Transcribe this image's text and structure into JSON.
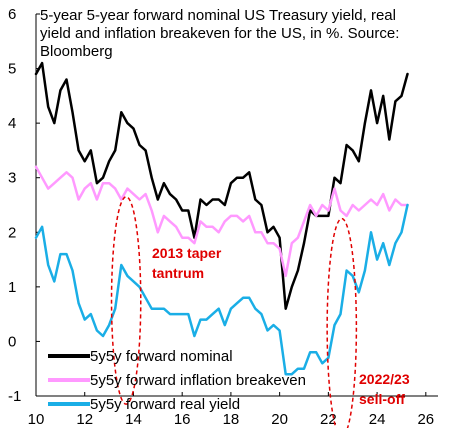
{
  "chart_data": {
    "type": "line",
    "title_lines": [
      "5-year 5-year forward nominal US Treasury yield, real",
      "yield and inflation breakeven for the US, in %. Source:",
      "Bloomberg"
    ],
    "xlabel": "",
    "ylabel": "",
    "xlim": [
      2010,
      2026.5
    ],
    "ylim": [
      -1,
      6
    ],
    "x_ticks": [
      10,
      12,
      14,
      16,
      18,
      20,
      22,
      24,
      26
    ],
    "y_ticks": [
      -1,
      0,
      1,
      2,
      3,
      4,
      5,
      6
    ],
    "grid": false,
    "legend_position": "bottom-left",
    "series": [
      {
        "name": "5y5y forward nominal",
        "color": "#000000",
        "x": [
          2010.0,
          2010.25,
          2010.5,
          2010.75,
          2011.0,
          2011.25,
          2011.5,
          2011.75,
          2012.0,
          2012.25,
          2012.5,
          2012.75,
          2013.0,
          2013.25,
          2013.5,
          2013.75,
          2014.0,
          2014.25,
          2014.5,
          2014.75,
          2015.0,
          2015.25,
          2015.5,
          2015.75,
          2016.0,
          2016.25,
          2016.5,
          2016.75,
          2017.0,
          2017.25,
          2017.5,
          2017.75,
          2018.0,
          2018.25,
          2018.5,
          2018.75,
          2019.0,
          2019.25,
          2019.5,
          2019.75,
          2020.0,
          2020.25,
          2020.5,
          2020.75,
          2021.0,
          2021.25,
          2021.5,
          2021.75,
          2022.0,
          2022.25,
          2022.5,
          2022.75,
          2023.0,
          2023.25,
          2023.5,
          2023.75,
          2024.0,
          2024.25,
          2024.5,
          2024.75,
          2025.0,
          2025.25
        ],
        "y": [
          4.9,
          5.1,
          4.3,
          4.0,
          4.6,
          4.8,
          4.2,
          3.5,
          3.3,
          3.5,
          2.9,
          3.0,
          3.3,
          3.5,
          4.2,
          4.0,
          3.9,
          3.6,
          3.5,
          3.0,
          2.6,
          2.9,
          2.7,
          2.6,
          2.4,
          2.4,
          1.9,
          2.6,
          2.5,
          2.6,
          2.6,
          2.5,
          2.9,
          3.0,
          3.0,
          3.1,
          2.6,
          2.5,
          2.0,
          2.1,
          1.9,
          0.6,
          1.0,
          1.3,
          1.8,
          2.4,
          2.3,
          2.3,
          2.3,
          3.0,
          2.9,
          3.6,
          3.5,
          3.3,
          4.0,
          4.6,
          4.0,
          4.5,
          3.7,
          4.4,
          4.5,
          4.9
        ]
      },
      {
        "name": "5y5y forward inflation breakeven",
        "color": "#ff99ff",
        "x": [
          2010.0,
          2010.25,
          2010.5,
          2010.75,
          2011.0,
          2011.25,
          2011.5,
          2011.75,
          2012.0,
          2012.25,
          2012.5,
          2012.75,
          2013.0,
          2013.25,
          2013.5,
          2013.75,
          2014.0,
          2014.25,
          2014.5,
          2014.75,
          2015.0,
          2015.25,
          2015.5,
          2015.75,
          2016.0,
          2016.25,
          2016.5,
          2016.75,
          2017.0,
          2017.25,
          2017.5,
          2017.75,
          2018.0,
          2018.25,
          2018.5,
          2018.75,
          2019.0,
          2019.25,
          2019.5,
          2019.75,
          2020.0,
          2020.25,
          2020.5,
          2020.75,
          2021.0,
          2021.25,
          2021.5,
          2021.75,
          2022.0,
          2022.25,
          2022.5,
          2022.75,
          2023.0,
          2023.25,
          2023.5,
          2023.75,
          2024.0,
          2024.25,
          2024.5,
          2024.75,
          2025.0,
          2025.25
        ],
        "y": [
          3.2,
          3.0,
          2.8,
          2.9,
          3.0,
          3.1,
          3.0,
          2.6,
          2.8,
          2.9,
          2.6,
          2.9,
          2.9,
          2.8,
          2.6,
          2.8,
          2.7,
          2.6,
          2.7,
          2.4,
          2.0,
          2.3,
          2.2,
          2.1,
          1.9,
          1.9,
          1.8,
          2.2,
          2.1,
          2.1,
          2.0,
          2.2,
          2.3,
          2.3,
          2.2,
          2.3,
          2.0,
          2.0,
          1.8,
          1.8,
          1.7,
          1.2,
          1.8,
          1.9,
          2.2,
          2.5,
          2.3,
          2.5,
          2.4,
          2.8,
          2.4,
          2.3,
          2.5,
          2.4,
          2.5,
          2.6,
          2.5,
          2.7,
          2.4,
          2.6,
          2.5,
          2.5
        ]
      },
      {
        "name": "5y5y forward real yield",
        "color": "#1aaee6",
        "x": [
          2010.0,
          2010.25,
          2010.5,
          2010.75,
          2011.0,
          2011.25,
          2011.5,
          2011.75,
          2012.0,
          2012.25,
          2012.5,
          2012.75,
          2013.0,
          2013.25,
          2013.5,
          2013.75,
          2014.0,
          2014.25,
          2014.5,
          2014.75,
          2015.0,
          2015.25,
          2015.5,
          2015.75,
          2016.0,
          2016.25,
          2016.5,
          2016.75,
          2017.0,
          2017.25,
          2017.5,
          2017.75,
          2018.0,
          2018.25,
          2018.5,
          2018.75,
          2019.0,
          2019.25,
          2019.5,
          2019.75,
          2020.0,
          2020.25,
          2020.5,
          2020.75,
          2021.0,
          2021.25,
          2021.5,
          2021.75,
          2022.0,
          2022.25,
          2022.5,
          2022.75,
          2023.0,
          2023.25,
          2023.5,
          2023.75,
          2024.0,
          2024.25,
          2024.5,
          2024.75,
          2025.0,
          2025.25
        ],
        "y": [
          1.9,
          2.1,
          1.4,
          1.1,
          1.6,
          1.6,
          1.3,
          0.7,
          0.4,
          0.5,
          0.2,
          0.1,
          0.3,
          0.6,
          1.4,
          1.2,
          1.1,
          1.0,
          0.8,
          0.6,
          0.6,
          0.6,
          0.5,
          0.5,
          0.5,
          0.5,
          0.1,
          0.4,
          0.4,
          0.5,
          0.6,
          0.3,
          0.6,
          0.7,
          0.8,
          0.8,
          0.6,
          0.5,
          0.2,
          0.3,
          0.2,
          -0.6,
          -0.6,
          -0.5,
          -0.5,
          -0.2,
          -0.2,
          -0.4,
          -0.3,
          0.3,
          0.5,
          1.3,
          1.2,
          0.9,
          1.3,
          2.0,
          1.5,
          1.8,
          1.4,
          1.8,
          2.0,
          2.5
        ]
      }
    ],
    "annotations": [
      {
        "lines": [
          "2013 taper",
          "tantrum"
        ],
        "ellipse_center": [
          2013.7,
          0.75
        ],
        "ellipse_radii": [
          0.6,
          1.9
        ]
      },
      {
        "lines": [
          "2022/23",
          "sell-off"
        ],
        "ellipse_center": [
          2022.55,
          0.25
        ],
        "ellipse_radii": [
          0.6,
          2.0
        ]
      }
    ],
    "annotation_color": "#e00000"
  }
}
